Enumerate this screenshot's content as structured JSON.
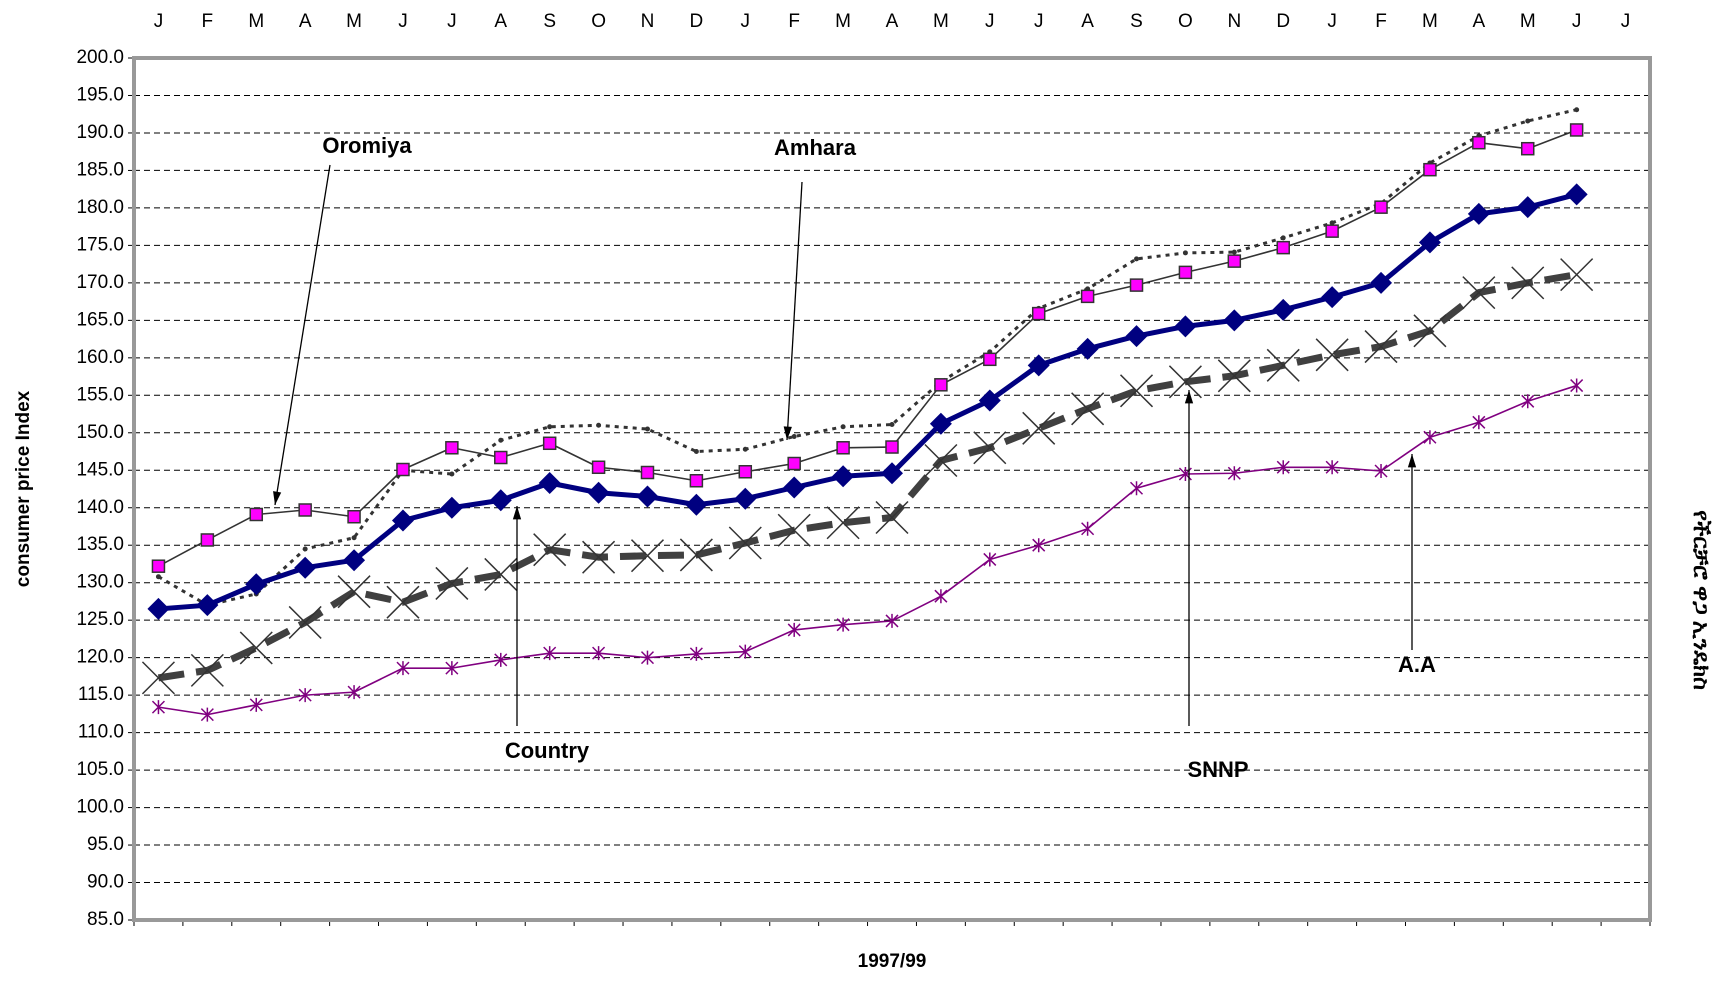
{
  "chart_data": {
    "type": "line",
    "x_label": "1997/99",
    "y_label": "consumer price Index",
    "side_label": "የችርቻሮ ዋጋ ኢንዴክስ",
    "categories": [
      "J",
      "F",
      "M",
      "A",
      "M",
      "J",
      "J",
      "A",
      "S",
      "O",
      "N",
      "D",
      "J",
      "F",
      "M",
      "A",
      "M",
      "J",
      "J",
      "A",
      "S",
      "O",
      "N",
      "D",
      "J",
      "F",
      "M",
      "A",
      "M",
      "J",
      "J"
    ],
    "ylim": [
      85,
      200
    ],
    "yticks": [
      {
        "value": 85,
        "label": "85.0"
      },
      {
        "value": 90,
        "label": "90.0"
      },
      {
        "value": 95,
        "label": "95.0"
      },
      {
        "value": 100,
        "label": "100.0"
      },
      {
        "value": 105,
        "label": "105.0"
      },
      {
        "value": 110,
        "label": "110.0"
      },
      {
        "value": 115,
        "label": "115.0"
      },
      {
        "value": 120,
        "label": "120.0"
      },
      {
        "value": 125,
        "label": "125.0"
      },
      {
        "value": 130,
        "label": "130.0"
      },
      {
        "value": 135,
        "label": "135.0"
      },
      {
        "value": 140,
        "label": "140.0"
      },
      {
        "value": 145,
        "label": "145.0"
      },
      {
        "value": 150,
        "label": "150.0"
      },
      {
        "value": 155,
        "label": "155.0"
      },
      {
        "value": 160,
        "label": "160.0"
      },
      {
        "value": 165,
        "label": "165.0"
      },
      {
        "value": 170,
        "label": "170.0"
      },
      {
        "value": 175,
        "label": "175.0"
      },
      {
        "value": 180,
        "label": "180.0"
      },
      {
        "value": 185,
        "label": "185.0"
      },
      {
        "value": 190,
        "label": "190.0"
      },
      {
        "value": 195,
        "label": "195.0"
      },
      {
        "value": 200,
        "label": "200.0"
      }
    ],
    "grid": true,
    "series": [
      {
        "name": "Amhara",
        "color": "#333333",
        "marker": "dot",
        "style": "dotted",
        "values": [
          130.8,
          127,
          128.5,
          134.5,
          136,
          145,
          144.5,
          149,
          150.8,
          151,
          150.5,
          147.5,
          147.8,
          149.5,
          150.8,
          151.1,
          156.8,
          160.8,
          166.6,
          169.2,
          173.2,
          174,
          174.1,
          176,
          178,
          180.6,
          186,
          189.6,
          191.6,
          193.1,
          null
        ]
      },
      {
        "name": "Oromiya",
        "color": "#333333",
        "marker": "square",
        "marker_color": "#ff00ff",
        "style": "thin",
        "values": [
          132.2,
          135.7,
          139.1,
          139.7,
          138.8,
          145.1,
          148,
          146.7,
          148.6,
          145.4,
          144.7,
          143.6,
          144.8,
          145.9,
          148,
          148.1,
          156.4,
          159.8,
          165.9,
          168.2,
          169.7,
          171.4,
          172.9,
          174.7,
          176.9,
          180.1,
          185.1,
          188.7,
          187.9,
          190.4,
          null
        ]
      },
      {
        "name": "SNNP",
        "color": "#404040",
        "marker": "x",
        "style": "dashed",
        "values": [
          117.3,
          118.3,
          121.3,
          124.7,
          128.8,
          127.4,
          129.9,
          131.1,
          134.4,
          133.4,
          133.6,
          133.7,
          135.3,
          137,
          138,
          138.7,
          146.3,
          148,
          150.6,
          153.2,
          155.6,
          156.8,
          157.6,
          159,
          160.4,
          161.5,
          163.6,
          168.7,
          170,
          171.1,
          null
        ]
      },
      {
        "name": "A.A",
        "color": "#800080",
        "marker": "star",
        "style": "thin",
        "values": [
          113.4,
          112.4,
          113.7,
          115,
          115.4,
          118.6,
          118.6,
          119.7,
          120.6,
          120.6,
          120,
          120.5,
          120.8,
          123.7,
          124.4,
          124.9,
          128.2,
          133.1,
          135,
          137.2,
          142.6,
          144.5,
          144.6,
          145.4,
          145.4,
          144.9,
          149.4,
          151.4,
          154.2,
          156.3,
          null
        ]
      },
      {
        "name": "Country",
        "color": "#000080",
        "marker": "diamond",
        "style": "thick",
        "values": [
          126.5,
          127,
          129.8,
          132,
          133,
          138.3,
          140,
          141,
          143.3,
          142,
          141.5,
          140.4,
          141.2,
          142.7,
          144.2,
          144.6,
          151.2,
          154.3,
          159,
          161.2,
          162.9,
          164.2,
          165,
          166.4,
          168.1,
          170,
          175.4,
          179.2,
          180.1,
          181.8,
          null
        ]
      }
    ]
  }
}
